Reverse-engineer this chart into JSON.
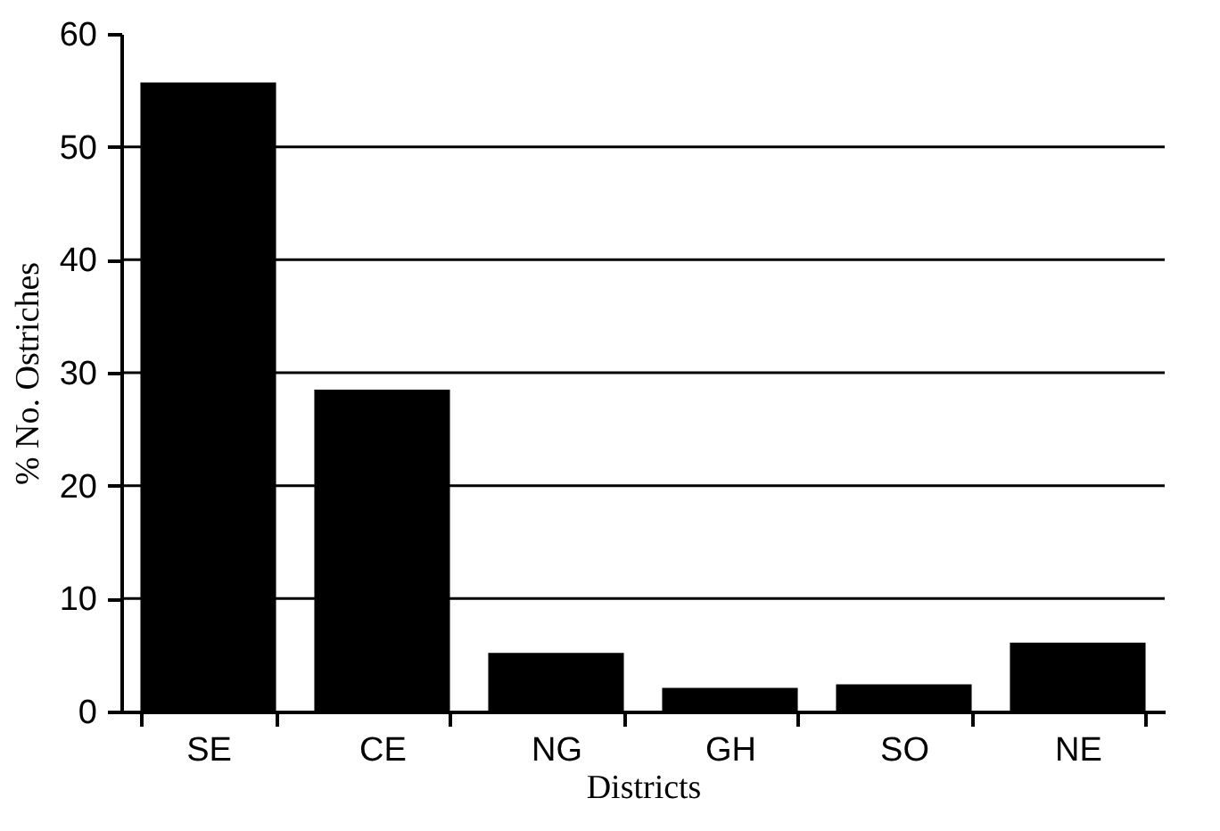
{
  "chart_data": {
    "type": "bar",
    "xlabel": "Districts",
    "ylabel": "% No. Ostriches",
    "categories": [
      "SE",
      "CE",
      "NG",
      "GH",
      "SO",
      "NE"
    ],
    "values": [
      55.7,
      28.5,
      5.2,
      2.1,
      2.4,
      6.1
    ],
    "color": "#000000",
    "ylim": [
      0,
      60
    ],
    "yticks": [
      0,
      10,
      20,
      30,
      40,
      50,
      60
    ],
    "grid": "y"
  }
}
